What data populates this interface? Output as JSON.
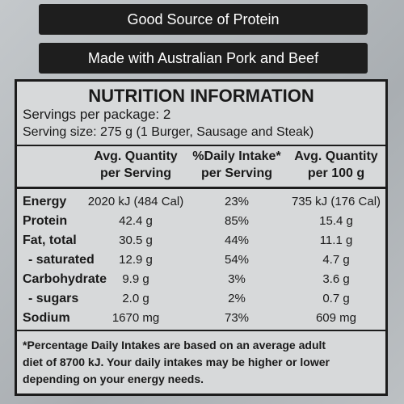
{
  "banners": [
    "Good Source of Protein",
    "Made with Australian Pork and Beef"
  ],
  "panel": {
    "title": "NUTRITION INFORMATION",
    "servings": "Servings per package: 2",
    "serving_size": "Serving size: 275 g (1 Burger, Sausage and Steak)",
    "columns": [
      [
        "Avg. Quantity",
        "per Serving"
      ],
      [
        "%Daily Intake*",
        "per Serving"
      ],
      [
        "Avg. Quantity",
        "per 100 g"
      ]
    ],
    "rows": [
      [
        "Energy",
        "2020 kJ (484 Cal)",
        "23%",
        "735 kJ (176 Cal)"
      ],
      [
        "Protein",
        "42.4 g",
        "85%",
        "15.4 g"
      ],
      [
        "Fat, total",
        "30.5 g",
        "44%",
        "11.1 g"
      ],
      [
        "- saturated",
        "12.9 g",
        "54%",
        "4.7 g"
      ],
      [
        "Carbohydrate",
        "9.9 g",
        "3%",
        "3.6 g"
      ],
      [
        "- sugars",
        "2.0 g",
        "2%",
        "0.7 g"
      ],
      [
        "Sodium",
        "1670 mg",
        "73%",
        "609 mg"
      ]
    ],
    "footnote": [
      "*Percentage Daily Intakes are based on an average adult",
      "diet of 8700 kJ. Your daily intakes may be higher or lower",
      "depending on your energy needs."
    ]
  }
}
